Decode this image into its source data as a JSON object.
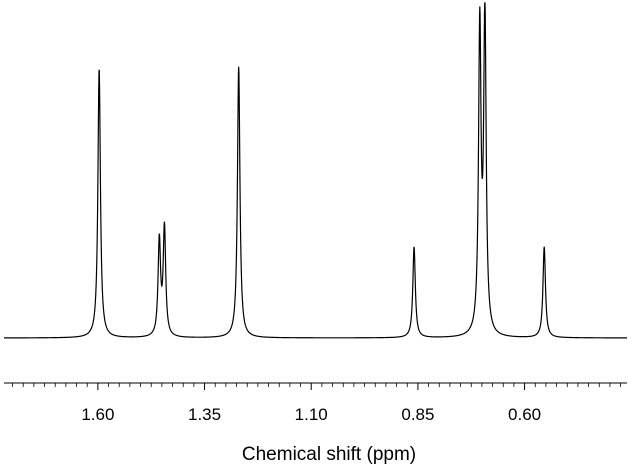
{
  "chart_data": {
    "type": "line",
    "title": "",
    "xlabel": "Chemical shift (ppm)",
    "ylabel": "",
    "x_reversed": true,
    "xlim": [
      1.82,
      0.36
    ],
    "ylim": [
      0,
      1.05
    ],
    "grid": false,
    "legend": "none",
    "y_axis_visible": false,
    "x_tick_labels": [
      "1.60",
      "1.35",
      "1.10",
      "0.85",
      "0.60"
    ],
    "x_ticks": [
      1.6,
      1.35,
      1.1,
      0.85,
      0.6
    ],
    "x_minor_tick_step": 0.025,
    "line_color": "#000000",
    "series": [
      {
        "peaks": [
          {
            "shift": 1.597,
            "intensity": 0.845
          },
          {
            "shift": 1.456,
            "intensity": 0.3
          },
          {
            "shift": 1.444,
            "intensity": 0.34
          },
          {
            "shift": 1.27,
            "intensity": 0.85
          },
          {
            "shift": 0.859,
            "intensity": 0.285
          },
          {
            "shift": 0.705,
            "intensity": 0.96
          },
          {
            "shift": 0.693,
            "intensity": 1.0
          },
          {
            "shift": 0.554,
            "intensity": 0.285
          }
        ]
      }
    ]
  }
}
